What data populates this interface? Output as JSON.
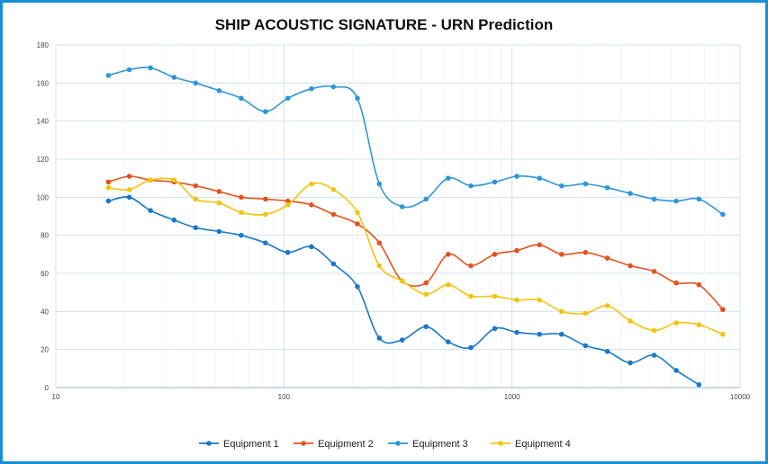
{
  "chart_data": {
    "type": "line",
    "title": "SHIP ACOUSTIC SIGNATURE - URN Prediction",
    "xlabel": "",
    "ylabel": "",
    "x_scale": "log",
    "xlim": [
      10,
      10000
    ],
    "ylim": [
      0,
      180
    ],
    "x_ticks": [
      "10",
      "100",
      "1000",
      "10000"
    ],
    "y_ticks": [
      "0",
      "20",
      "40",
      "60",
      "80",
      "100",
      "120",
      "140",
      "160",
      "180"
    ],
    "grid": true,
    "legend_position": "bottom",
    "x": [
      17,
      21,
      26,
      33,
      41,
      52,
      65,
      83,
      104,
      132,
      165,
      210,
      262,
      330,
      420,
      525,
      660,
      840,
      1050,
      1320,
      1650,
      2100,
      2620,
      3300,
      4200,
      5250,
      6600,
      8400
    ],
    "series": [
      {
        "name": "Equipment 1",
        "color": "#1a78c8",
        "values": [
          98,
          100,
          93,
          88,
          84,
          82,
          80,
          76,
          71,
          74,
          65,
          53,
          26,
          25,
          32,
          24,
          21,
          31,
          29,
          28,
          28,
          22,
          19,
          13,
          17,
          9,
          1.5,
          null
        ]
      },
      {
        "name": "Equipment 2",
        "color": "#e0541d",
        "values": [
          108,
          111,
          109,
          108,
          106,
          103,
          100,
          99,
          98,
          96,
          91,
          86,
          76,
          56,
          55,
          70,
          64,
          70,
          72,
          75,
          70,
          71,
          68,
          64,
          61,
          55,
          54,
          41
        ]
      },
      {
        "name": "Equipment 3",
        "color": "#3096d6",
        "values": [
          164,
          167,
          168,
          163,
          160,
          156,
          152,
          145,
          152,
          157,
          158,
          152,
          107,
          95,
          99,
          110,
          106,
          108,
          111,
          110,
          106,
          107,
          105,
          102,
          99,
          98,
          99,
          91
        ]
      },
      {
        "name": "Equipment 4",
        "color": "#f2c40f",
        "values": [
          105,
          104,
          109,
          109,
          99,
          97,
          92,
          91,
          96,
          107,
          104,
          92,
          64,
          56,
          49,
          54,
          48,
          48,
          46,
          46,
          40,
          39,
          43,
          35,
          30,
          34,
          33,
          28
        ]
      }
    ]
  }
}
